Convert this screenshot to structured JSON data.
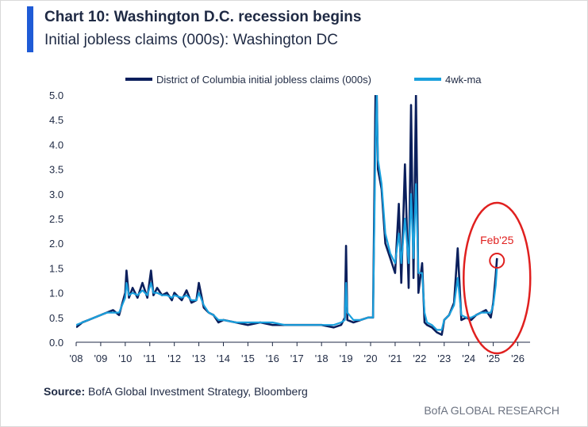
{
  "header": {
    "title": "Chart 10: Washington D.C. recession begins",
    "subtitle": "Initial jobless claims (000s): Washington DC"
  },
  "footer": {
    "source_label": "Source:",
    "source_text": "BofA Global Investment Strategy, Bloomberg",
    "brand": "BofA GLOBAL RESEARCH"
  },
  "colors": {
    "series_weekly": "#0b1f5c",
    "series_ma": "#1aa0dd",
    "annotation": "#e0201f",
    "axis_text": "#1f2a44",
    "accent_bar": "#1f5bd6"
  },
  "chart_data": {
    "type": "line",
    "xlabel": "",
    "ylabel": "",
    "xlim": [
      2008,
      2026.5
    ],
    "ylim": [
      0,
      5.0
    ],
    "y_ticks": [
      0.0,
      0.5,
      1.0,
      1.5,
      2.0,
      2.5,
      3.0,
      3.5,
      4.0,
      4.5,
      5.0
    ],
    "y_tick_labels": [
      "0.0",
      "0.5",
      "1.0",
      "1.5",
      "2.0",
      "2.5",
      "3.0",
      "3.5",
      "4.0",
      "4.5",
      "5.0"
    ],
    "x_ticks": [
      2008,
      2009,
      2010,
      2011,
      2012,
      2013,
      2014,
      2015,
      2016,
      2017,
      2018,
      2019,
      2020,
      2021,
      2022,
      2023,
      2024,
      2025,
      2026
    ],
    "x_tick_labels": [
      "'08",
      "'09",
      "'10",
      "'11",
      "'12",
      "'13",
      "'14",
      "'15",
      "'16",
      "'17",
      "'18",
      "'19",
      "'20",
      "'21",
      "'22",
      "'23",
      "'24",
      "'25",
      "'26"
    ],
    "legend_position": "top",
    "series": [
      {
        "name": "District of Columbia initial jobless claims (000s)",
        "x": [
          2008.0,
          2008.25,
          2008.5,
          2008.75,
          2009.0,
          2009.25,
          2009.5,
          2009.75,
          2010.0,
          2010.05,
          2010.15,
          2010.3,
          2010.5,
          2010.7,
          2010.9,
          2011.05,
          2011.15,
          2011.3,
          2011.5,
          2011.7,
          2011.9,
          2012.0,
          2012.3,
          2012.5,
          2012.7,
          2012.9,
          2013.0,
          2013.2,
          2013.4,
          2013.6,
          2013.8,
          2014.0,
          2014.5,
          2015.0,
          2015.5,
          2016.0,
          2016.5,
          2017.0,
          2017.5,
          2018.0,
          2018.5,
          2018.8,
          2018.95,
          2019.0,
          2019.05,
          2019.3,
          2019.6,
          2019.9,
          2020.1,
          2020.2,
          2020.25,
          2020.3,
          2020.45,
          2020.6,
          2020.8,
          2021.0,
          2021.15,
          2021.25,
          2021.4,
          2021.55,
          2021.65,
          2021.75,
          2021.85,
          2021.95,
          2022.1,
          2022.2,
          2022.3,
          2022.5,
          2022.7,
          2022.9,
          2023.0,
          2023.2,
          2023.4,
          2023.55,
          2023.7,
          2023.9,
          2024.1,
          2024.3,
          2024.5,
          2024.7,
          2024.9,
          2025.0,
          2025.1,
          2025.15
        ],
        "y": [
          0.3,
          0.4,
          0.45,
          0.5,
          0.55,
          0.6,
          0.65,
          0.55,
          1.0,
          1.45,
          0.9,
          1.1,
          0.9,
          1.2,
          0.9,
          1.45,
          0.95,
          1.1,
          0.95,
          1.0,
          0.85,
          1.0,
          0.85,
          1.05,
          0.8,
          0.85,
          1.2,
          0.7,
          0.6,
          0.55,
          0.4,
          0.45,
          0.4,
          0.35,
          0.4,
          0.35,
          0.35,
          0.35,
          0.35,
          0.35,
          0.3,
          0.35,
          0.5,
          1.95,
          0.45,
          0.4,
          0.45,
          0.5,
          0.5,
          5.0,
          5.0,
          3.5,
          3.1,
          2.0,
          1.7,
          1.4,
          2.8,
          1.2,
          3.6,
          1.1,
          4.8,
          1.3,
          5.0,
          1.0,
          1.6,
          0.4,
          0.35,
          0.3,
          0.2,
          0.15,
          0.45,
          0.55,
          0.8,
          1.9,
          0.45,
          0.5,
          0.45,
          0.55,
          0.6,
          0.65,
          0.5,
          0.8,
          1.35,
          1.7
        ]
      },
      {
        "name": "4wk-ma",
        "x": [
          2008.0,
          2008.25,
          2008.5,
          2008.75,
          2009.0,
          2009.25,
          2009.5,
          2009.75,
          2010.0,
          2010.05,
          2010.15,
          2010.3,
          2010.5,
          2010.7,
          2010.9,
          2011.05,
          2011.15,
          2011.3,
          2011.5,
          2011.7,
          2011.9,
          2012.0,
          2012.3,
          2012.5,
          2012.7,
          2012.9,
          2013.0,
          2013.2,
          2013.4,
          2013.6,
          2013.8,
          2014.0,
          2014.5,
          2015.0,
          2015.5,
          2016.0,
          2016.5,
          2017.0,
          2017.5,
          2018.0,
          2018.5,
          2018.8,
          2018.95,
          2019.0,
          2019.05,
          2019.3,
          2019.6,
          2019.9,
          2020.1,
          2020.2,
          2020.25,
          2020.3,
          2020.45,
          2020.6,
          2020.8,
          2021.0,
          2021.15,
          2021.25,
          2021.4,
          2021.55,
          2021.65,
          2021.75,
          2021.85,
          2021.95,
          2022.1,
          2022.2,
          2022.3,
          2022.5,
          2022.7,
          2022.9,
          2023.0,
          2023.2,
          2023.4,
          2023.55,
          2023.7,
          2023.9,
          2024.1,
          2024.3,
          2024.5,
          2024.7,
          2024.9,
          2025.0,
          2025.1,
          2025.15
        ],
        "y": [
          0.35,
          0.4,
          0.45,
          0.5,
          0.55,
          0.6,
          0.6,
          0.6,
          0.9,
          1.2,
          0.95,
          1.0,
          0.95,
          1.05,
          0.95,
          1.2,
          1.0,
          1.0,
          0.95,
          0.95,
          0.9,
          0.95,
          0.9,
          0.95,
          0.85,
          0.85,
          1.0,
          0.75,
          0.6,
          0.55,
          0.45,
          0.45,
          0.4,
          0.4,
          0.4,
          0.4,
          0.35,
          0.35,
          0.35,
          0.35,
          0.35,
          0.4,
          0.45,
          1.2,
          0.6,
          0.45,
          0.45,
          0.5,
          0.5,
          4.0,
          5.0,
          3.7,
          3.2,
          2.2,
          1.8,
          1.6,
          2.2,
          1.6,
          2.5,
          1.6,
          3.0,
          1.7,
          3.2,
          1.4,
          1.4,
          0.6,
          0.4,
          0.35,
          0.25,
          0.25,
          0.45,
          0.55,
          0.75,
          1.3,
          0.55,
          0.5,
          0.5,
          0.55,
          0.6,
          0.6,
          0.6,
          0.75,
          1.15,
          1.5
        ]
      }
    ],
    "annotations": [
      {
        "text": "Feb'25",
        "x": 2025.15,
        "y": 1.65
      }
    ]
  }
}
